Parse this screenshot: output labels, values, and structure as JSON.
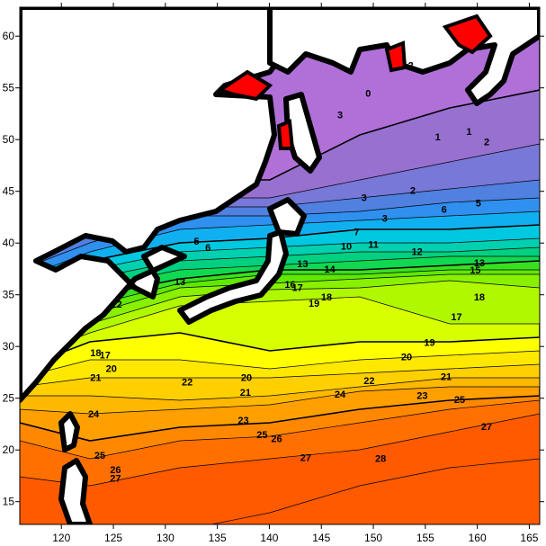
{
  "map": {
    "x_ticks": [
      "120",
      "125",
      "130",
      "135",
      "140",
      "145",
      "150",
      "155",
      "160",
      "165"
    ],
    "y_ticks": [
      "15",
      "20",
      "25",
      "30",
      "35",
      "40",
      "45",
      "50",
      "55",
      "60"
    ],
    "x_range": [
      116,
      166
    ],
    "y_range": [
      12.8,
      62.8
    ],
    "land_color": "#ffffff",
    "coast_color": "#000000",
    "ice_color": "#ff0000",
    "band_colors": {
      "28": "#ff5a00",
      "27": "#ff7000",
      "26": "#ff8800",
      "25": "#ffa000",
      "24": "#ffb800",
      "23": "#ffd000",
      "22": "#ffe800",
      "21": "#ffff00",
      "20": "#d8ff00",
      "19": "#b0f800",
      "18": "#88f000",
      "17": "#60e800",
      "16": "#38e020",
      "15": "#10d850",
      "14": "#00d080",
      "13": "#00d0b0",
      "12": "#00c8e0",
      "10": "#10b0f0",
      "8": "#3090f0",
      "6": "#5080e0",
      "4": "#7878d8",
      "2": "#9870d0",
      "0": "#b070d8"
    },
    "contour_labels": [
      {
        "text": "0",
        "lon": 149.5,
        "lat": 54.5
      },
      {
        "text": "1",
        "lon": 159.2,
        "lat": 50.8
      },
      {
        "text": "1",
        "lon": 156.2,
        "lat": 50.3
      },
      {
        "text": "2",
        "lon": 160.9,
        "lat": 49.8
      },
      {
        "text": "2",
        "lon": 153.6,
        "lat": 57.2
      },
      {
        "text": "2",
        "lon": 153.8,
        "lat": 45.1
      },
      {
        "text": "3",
        "lon": 146.8,
        "lat": 52.4
      },
      {
        "text": "3",
        "lon": 149.1,
        "lat": 44.4
      },
      {
        "text": "3",
        "lon": 151.1,
        "lat": 42.4
      },
      {
        "text": "5",
        "lon": 133.0,
        "lat": 40.2
      },
      {
        "text": "5",
        "lon": 160.1,
        "lat": 43.9
      },
      {
        "text": "6",
        "lon": 134.1,
        "lat": 39.6
      },
      {
        "text": "6",
        "lon": 156.8,
        "lat": 43.3
      },
      {
        "text": "7",
        "lon": 148.4,
        "lat": 41.1
      },
      {
        "text": "10",
        "lon": 147.4,
        "lat": 39.7
      },
      {
        "text": "11",
        "lon": 150.0,
        "lat": 39.9
      },
      {
        "text": "12",
        "lon": 154.2,
        "lat": 39.2
      },
      {
        "text": "12",
        "lon": 125.3,
        "lat": 34.1
      },
      {
        "text": "13",
        "lon": 131.4,
        "lat": 36.3
      },
      {
        "text": "13",
        "lon": 143.2,
        "lat": 38.0
      },
      {
        "text": "13",
        "lon": 160.2,
        "lat": 38.1
      },
      {
        "text": "14",
        "lon": 145.8,
        "lat": 37.5
      },
      {
        "text": "15",
        "lon": 159.8,
        "lat": 37.4
      },
      {
        "text": "16",
        "lon": 142.0,
        "lat": 36.0
      },
      {
        "text": "17",
        "lon": 142.7,
        "lat": 35.7
      },
      {
        "text": "17",
        "lon": 158.0,
        "lat": 32.9
      },
      {
        "text": "17",
        "lon": 124.2,
        "lat": 29.2
      },
      {
        "text": "18",
        "lon": 145.5,
        "lat": 34.8
      },
      {
        "text": "18",
        "lon": 160.2,
        "lat": 34.8
      },
      {
        "text": "18",
        "lon": 123.3,
        "lat": 29.4
      },
      {
        "text": "19",
        "lon": 144.3,
        "lat": 34.2
      },
      {
        "text": "19",
        "lon": 155.4,
        "lat": 30.4
      },
      {
        "text": "20",
        "lon": 137.8,
        "lat": 27.0
      },
      {
        "text": "20",
        "lon": 153.2,
        "lat": 29.0
      },
      {
        "text": "20",
        "lon": 124.8,
        "lat": 27.9
      },
      {
        "text": "21",
        "lon": 137.7,
        "lat": 25.6
      },
      {
        "text": "21",
        "lon": 157.0,
        "lat": 27.1
      },
      {
        "text": "21",
        "lon": 123.3,
        "lat": 27.0
      },
      {
        "text": "22",
        "lon": 132.1,
        "lat": 26.6
      },
      {
        "text": "22",
        "lon": 149.6,
        "lat": 26.7
      },
      {
        "text": "23",
        "lon": 137.5,
        "lat": 22.9
      },
      {
        "text": "23",
        "lon": 154.7,
        "lat": 25.3
      },
      {
        "text": "24",
        "lon": 146.8,
        "lat": 25.4
      },
      {
        "text": "24",
        "lon": 123.1,
        "lat": 23.5
      },
      {
        "text": "25",
        "lon": 139.3,
        "lat": 21.5
      },
      {
        "text": "25",
        "lon": 158.3,
        "lat": 24.9
      },
      {
        "text": "25",
        "lon": 123.7,
        "lat": 19.5
      },
      {
        "text": "26",
        "lon": 140.7,
        "lat": 21.1
      },
      {
        "text": "26",
        "lon": 125.2,
        "lat": 18.1
      },
      {
        "text": "27",
        "lon": 143.5,
        "lat": 19.3
      },
      {
        "text": "27",
        "lon": 160.9,
        "lat": 22.3
      },
      {
        "text": "27",
        "lon": 125.2,
        "lat": 17.3
      },
      {
        "text": "28",
        "lon": 150.7,
        "lat": 19.2
      }
    ]
  }
}
